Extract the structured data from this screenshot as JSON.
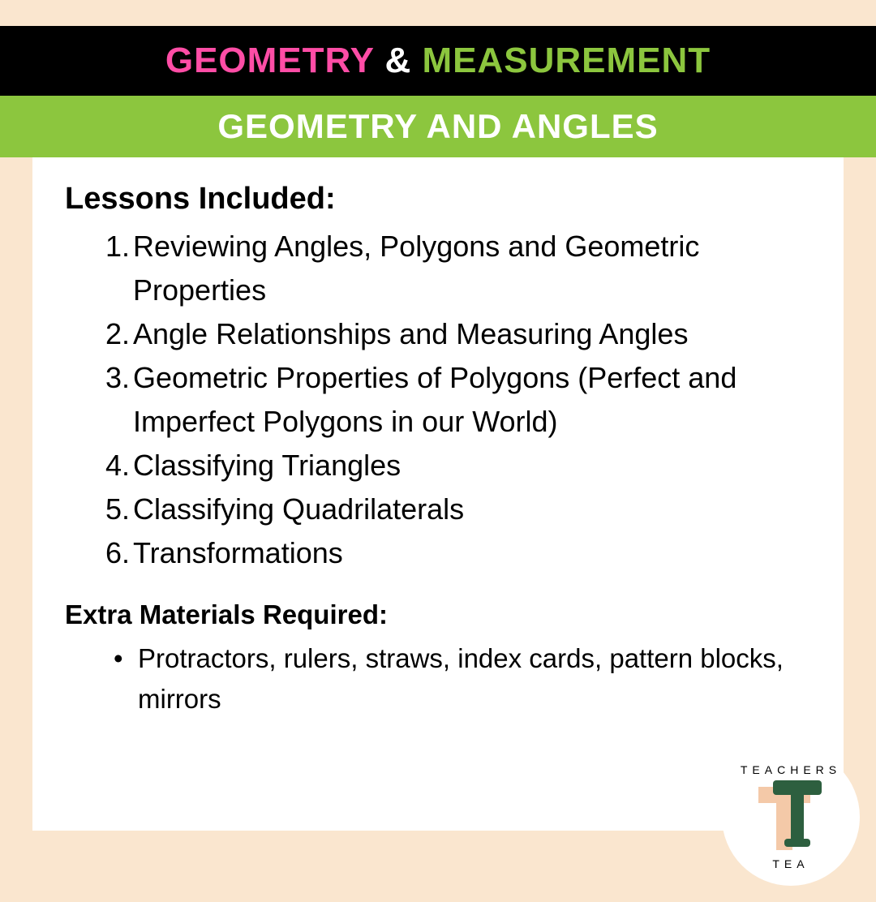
{
  "header": {
    "title_parts": [
      {
        "text": "GEOMETRY",
        "color": "#ff4da6"
      },
      {
        "text": " & ",
        "color": "#ffffff"
      },
      {
        "text": "MEASUREMENT",
        "color": "#8cc63e"
      }
    ],
    "subtitle": "GEOMETRY AND ANGLES",
    "black_bg": "#000000",
    "green_bg": "#8cc63e"
  },
  "content": {
    "lessons_heading": "Lessons Included:",
    "lessons": [
      "Reviewing Angles, Polygons and Geometric Properties",
      "Angle Relationships and Measuring Angles",
      "Geometric Properties of Polygons (Perfect and Imperfect Polygons in our World)",
      "Classifying Triangles",
      "Classifying Quadrilaterals",
      "Transformations"
    ],
    "materials_heading": "Extra Materials Required:",
    "materials": [
      "Protractors, rulers, straws, index cards, pattern blocks, mirrors"
    ]
  },
  "logo": {
    "top_text": "TEACHERS",
    "bottom_text": "TEA",
    "circle_bg": "#ffffff",
    "t_back_color": "#f4c9a8",
    "t_front_color": "#2d5f3f"
  },
  "page_bg": "#fae6cf"
}
